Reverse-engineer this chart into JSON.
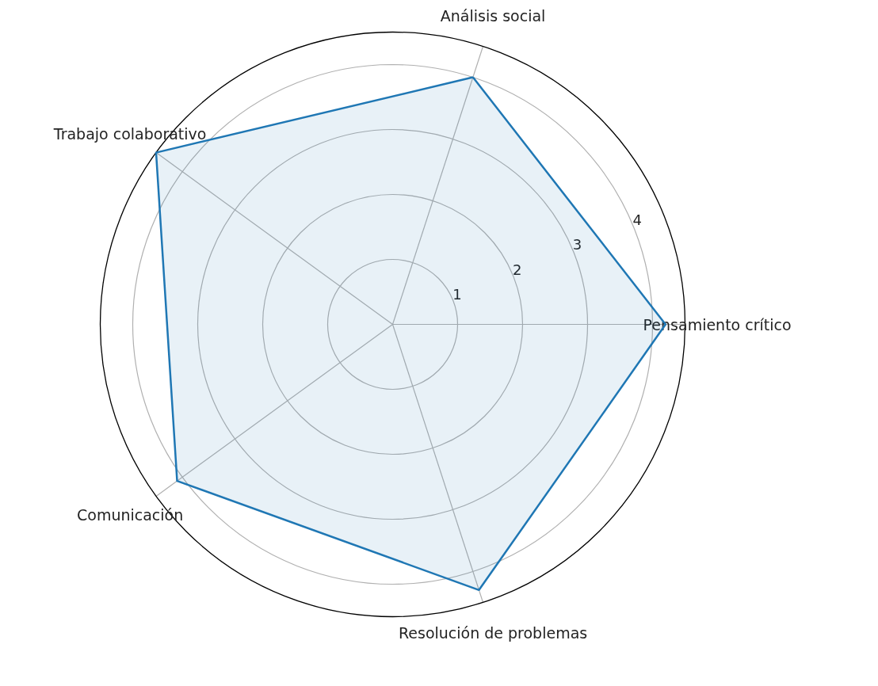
{
  "chart_data": {
    "type": "radar",
    "categories": [
      "Análisis social",
      "Pensamiento crítico",
      "Resolución de problemas",
      "Comunicación",
      "Trabajo colaborativo"
    ],
    "series": [
      {
        "color": "#1f77b4",
        "values": [
          4.0,
          4.2,
          4.3,
          4.1,
          4.5
        ]
      }
    ],
    "ylim": [
      0,
      4.5
    ],
    "yticks": [
      1,
      2,
      3,
      4
    ],
    "grid": true
  }
}
